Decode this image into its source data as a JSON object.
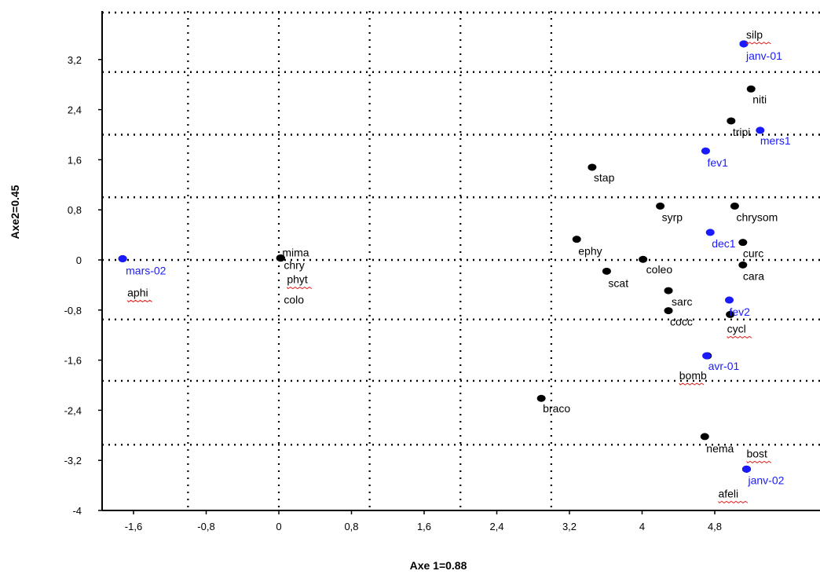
{
  "chart_data": {
    "type": "scatter",
    "xlabel": "Axe 1=0.88",
    "ylabel": "Axe2=0.45",
    "xlim": [
      -1.95,
      5.9
    ],
    "ylim": [
      -4,
      3.95
    ],
    "x_ticks": [
      "-1,6",
      "-0,8",
      "0",
      "0,8",
      "1,6",
      "2,4",
      "3,2",
      "4",
      "4,8"
    ],
    "x_tick_values": [
      -1.6,
      -0.8,
      0,
      0.8,
      1.6,
      2.4,
      3.2,
      4,
      4.8
    ],
    "y_ticks": [
      "3,2",
      "2,4",
      "1,6",
      "0,8",
      "0",
      "-0,8",
      "-1,6",
      "-2,4",
      "-3,2",
      "-4"
    ],
    "y_tick_values": [
      3.2,
      2.4,
      1.6,
      0.8,
      0,
      -0.8,
      -1.6,
      -2.4,
      -3.2,
      -4
    ],
    "grid": {
      "horizontal_dotted": [
        3.95,
        3.0,
        2.0,
        1.0,
        0,
        -0.95,
        -1.93,
        -2.95
      ],
      "vertical_dotted": [
        -1.0,
        0,
        1.0,
        2.0,
        3.0
      ]
    },
    "series": [
      {
        "color": "#000000",
        "points": [
          {
            "label": "mima",
            "x": 0.02,
            "y": 0.03
          },
          {
            "label": "chry",
            "x": 0.02,
            "y": 0.03
          },
          {
            "label": "phyt",
            "x": 0.02,
            "y": 0.03
          },
          {
            "label": "colo",
            "x": 0.02,
            "y": 0.03
          },
          {
            "label": "aphi",
            "x": -1.72,
            "y": 0.02
          },
          {
            "label": "stap",
            "x": 3.45,
            "y": 1.48
          },
          {
            "label": "ephy",
            "x": 3.28,
            "y": 0.33
          },
          {
            "label": "scat",
            "x": 3.61,
            "y": -0.18
          },
          {
            "label": "coleo",
            "x": 4.01,
            "y": 0.01
          },
          {
            "label": "syrp",
            "x": 4.2,
            "y": 0.86
          },
          {
            "label": "sarc",
            "x": 4.29,
            "y": -0.49
          },
          {
            "label": "cocc",
            "x": 4.29,
            "y": -0.81
          },
          {
            "label": "bomb",
            "x": 4.72,
            "y": -1.53
          },
          {
            "label": "braco",
            "x": 2.89,
            "y": -2.21
          },
          {
            "label": "nema",
            "x": 4.69,
            "y": -2.82
          },
          {
            "label": "afeli",
            "x": 5.15,
            "y": -3.34
          },
          {
            "label": "bost",
            "x": 5.15,
            "y": -3.34
          },
          {
            "label": "silp",
            "x": 5.12,
            "y": 3.45
          },
          {
            "label": "niti",
            "x": 5.2,
            "y": 2.73
          },
          {
            "label": "tripi",
            "x": 4.98,
            "y": 2.22
          },
          {
            "label": "chrysom",
            "x": 5.02,
            "y": 0.86
          },
          {
            "label": "curc",
            "x": 5.11,
            "y": 0.28
          },
          {
            "label": "cara",
            "x": 5.11,
            "y": -0.08
          },
          {
            "label": "cycl",
            "x": 4.97,
            "y": -0.87
          }
        ]
      },
      {
        "color": "#1a1aff",
        "points": [
          {
            "label": "janv-01",
            "x": 5.12,
            "y": 3.45
          },
          {
            "label": "mers1",
            "x": 5.3,
            "y": 2.07
          },
          {
            "label": "fev1",
            "x": 4.7,
            "y": 1.74
          },
          {
            "label": "dec1",
            "x": 4.75,
            "y": 0.44
          },
          {
            "label": "mars-02",
            "x": -1.72,
            "y": 0.02
          },
          {
            "label": "fev2",
            "x": 4.96,
            "y": -0.64
          },
          {
            "label": "avr-01",
            "x": 4.71,
            "y": -1.53
          },
          {
            "label": "janv-02",
            "x": 5.15,
            "y": -3.34
          }
        ]
      }
    ],
    "spellcheck_underlined": [
      "silp",
      "phyt",
      "aphi",
      "cycl",
      "bomb",
      "bost",
      "afeli"
    ]
  }
}
